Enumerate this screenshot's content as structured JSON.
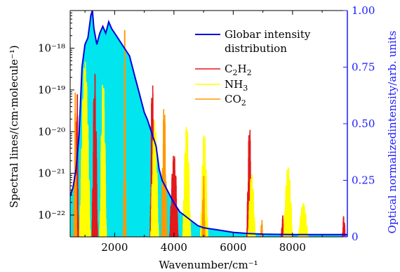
{
  "chart_data": {
    "type": "line",
    "xlabel": "Wavenumber/cm⁻¹",
    "ylabel_left": "Spectral lines/(cm·molecule⁻¹)",
    "ylabel_right": "Optical normalizedintensity/arb. units",
    "xlim": [
      500,
      9850
    ],
    "ylim_left_log": [
      3e-23,
      8e-18
    ],
    "ylim_right": [
      0,
      1.0
    ],
    "x_ticks": [
      2000,
      4000,
      6000,
      8000
    ],
    "y_left_ticks": [
      1e-18,
      1e-19,
      1e-20,
      1e-21,
      1e-22
    ],
    "y_left_tick_labels": [
      "10⁻¹⁸",
      "10⁻¹⁹",
      "10⁻²⁰",
      "10⁻²¹",
      "10⁻²²"
    ],
    "y_right_ticks": [
      0,
      0.25,
      0.5,
      0.75,
      1.0
    ],
    "y_right_tick_labels": [
      "0",
      "0.25",
      "0.50",
      "0.75",
      "1.00"
    ],
    "legend_position": "top-right",
    "colors": {
      "globar": "#0000dd",
      "c2h2": "#e31a1c",
      "nh3": "#ffff00",
      "co2": "#ff9900",
      "fill": "#00e5ee",
      "right_axis": "#1a1aff"
    },
    "series": [
      {
        "name": "Globar intensity distribution",
        "legend_lines": [
          "Globar intensity",
          "distribution"
        ],
        "axis": "right",
        "color": "#0000dd",
        "x": [
          500,
          600,
          700,
          800,
          900,
          1000,
          1100,
          1200,
          1250,
          1300,
          1400,
          1500,
          1600,
          1700,
          1800,
          1900,
          2000,
          2100,
          2200,
          2300,
          2400,
          2500,
          2600,
          2700,
          2800,
          2900,
          3000,
          3100,
          3200,
          3300,
          3400,
          3500,
          3600,
          3800,
          4000,
          4200,
          4400,
          4600,
          4800,
          5000,
          5500,
          6000,
          6500,
          7000,
          8000,
          9000,
          9850
        ],
        "y": [
          0.18,
          0.22,
          0.3,
          0.45,
          0.75,
          0.85,
          0.88,
          0.98,
          1.0,
          0.92,
          0.85,
          0.9,
          0.93,
          0.9,
          0.95,
          0.92,
          0.9,
          0.88,
          0.86,
          0.84,
          0.82,
          0.8,
          0.75,
          0.7,
          0.65,
          0.6,
          0.55,
          0.52,
          0.48,
          0.44,
          0.4,
          0.3,
          0.25,
          0.2,
          0.15,
          0.11,
          0.09,
          0.07,
          0.05,
          0.04,
          0.03,
          0.02,
          0.015,
          0.012,
          0.01,
          0.01,
          0.01
        ]
      },
      {
        "name": "C₂H₂",
        "legend_parts": [
          "C",
          "2",
          "H",
          "2"
        ],
        "axis": "left",
        "color": "#e31a1c",
        "bands": [
          {
            "x0": 680,
            "x1": 780,
            "peak": 2e-19
          },
          {
            "x0": 1240,
            "x1": 1420,
            "peak": 3e-19
          },
          {
            "x0": 3200,
            "x1": 3340,
            "peak": 2.5e-19
          },
          {
            "x0": 3860,
            "x1": 4140,
            "peak": 3e-21
          },
          {
            "x0": 6460,
            "x1": 6640,
            "peak": 1.5e-20
          },
          {
            "x0": 7620,
            "x1": 7720,
            "peak": 1e-22
          },
          {
            "x0": 9680,
            "x1": 9780,
            "peak": 1e-22
          }
        ]
      },
      {
        "name": "NH₃",
        "legend_parts": [
          "NH",
          "3"
        ],
        "axis": "left",
        "color": "#ffff00",
        "bands": [
          {
            "x0": 820,
            "x1": 1180,
            "peak": 5e-19
          },
          {
            "x0": 1500,
            "x1": 1720,
            "peak": 2e-19
          },
          {
            "x0": 3220,
            "x1": 3480,
            "peak": 2e-20
          },
          {
            "x0": 4300,
            "x1": 4560,
            "peak": 1.5e-20
          },
          {
            "x0": 4900,
            "x1": 5140,
            "peak": 1e-20
          },
          {
            "x0": 6500,
            "x1": 6740,
            "peak": 1e-21
          },
          {
            "x0": 7700,
            "x1": 8000,
            "peak": 1.5e-21
          },
          {
            "x0": 8200,
            "x1": 8520,
            "peak": 2e-22
          }
        ]
      },
      {
        "name": "CO₂",
        "legend_parts": [
          "CO",
          "2"
        ],
        "axis": "left",
        "color": "#ff9900",
        "bands": [
          {
            "x0": 620,
            "x1": 720,
            "peak": 1e-19
          },
          {
            "x0": 2300,
            "x1": 2380,
            "peak": 3.5e-18
          },
          {
            "x0": 3580,
            "x1": 3760,
            "peak": 5e-20
          },
          {
            "x0": 4950,
            "x1": 5050,
            "peak": 1e-21
          },
          {
            "x0": 6930,
            "x1": 6990,
            "peak": 1e-22
          }
        ]
      }
    ]
  }
}
